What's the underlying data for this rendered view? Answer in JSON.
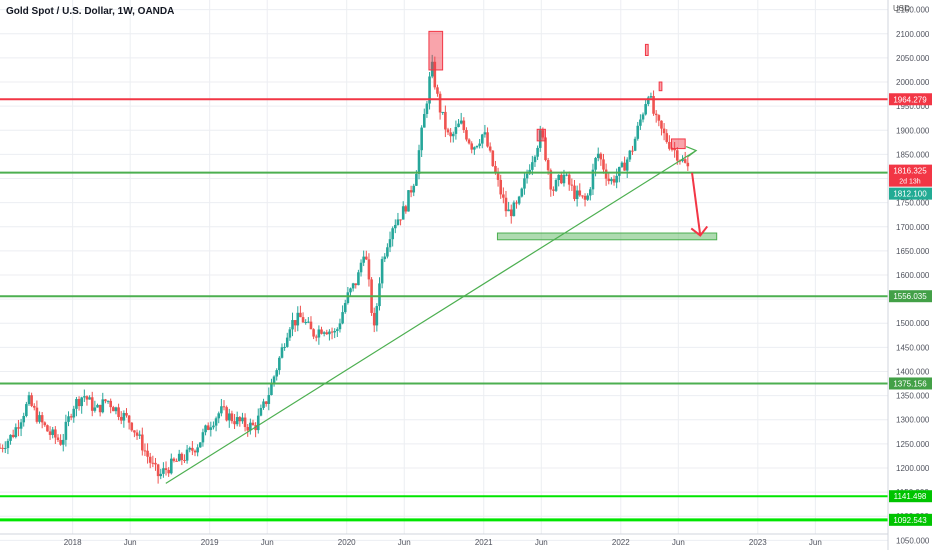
{
  "chart_data": {
    "type": "candlestick",
    "title": "Gold Spot / U.S. Dollar, 1W, OANDA",
    "currency": "USD",
    "ylim": [
      1030,
      2170
    ],
    "y_ticks": [
      2150,
      2100,
      2050,
      2000,
      1950,
      1900,
      1850,
      1800,
      1750,
      1700,
      1650,
      1600,
      1550,
      1500,
      1450,
      1400,
      1350,
      1300,
      1250,
      1200,
      1150,
      1100,
      1050
    ],
    "x_ticks": [
      {
        "label": "2018",
        "t": 2018.0
      },
      {
        "label": "Jun",
        "t": 2018.42
      },
      {
        "label": "2019",
        "t": 2019.0
      },
      {
        "label": "Jun",
        "t": 2019.42
      },
      {
        "label": "2020",
        "t": 2020.0
      },
      {
        "label": "Jun",
        "t": 2020.42
      },
      {
        "label": "2021",
        "t": 2021.0
      },
      {
        "label": "Jun",
        "t": 2021.42
      },
      {
        "label": "2022",
        "t": 2022.0
      },
      {
        "label": "Jun",
        "t": 2022.42
      },
      {
        "label": "2023",
        "t": 2023.0
      },
      {
        "label": "Jun",
        "t": 2023.42
      }
    ],
    "xlim": [
      2017.47,
      2023.95
    ],
    "price_path": [
      [
        2017.47,
        1242
      ],
      [
        2017.56,
        1268
      ],
      [
        2017.68,
        1338
      ],
      [
        2017.75,
        1302
      ],
      [
        2017.83,
        1272
      ],
      [
        2017.92,
        1254
      ],
      [
        2018.0,
        1328
      ],
      [
        2018.08,
        1352
      ],
      [
        2018.17,
        1318
      ],
      [
        2018.25,
        1342
      ],
      [
        2018.33,
        1318
      ],
      [
        2018.42,
        1296
      ],
      [
        2018.5,
        1252
      ],
      [
        2018.58,
        1205
      ],
      [
        2018.63,
        1182
      ],
      [
        2018.67,
        1195
      ],
      [
        2018.75,
        1212
      ],
      [
        2018.83,
        1225
      ],
      [
        2018.92,
        1252
      ],
      [
        2019.0,
        1292
      ],
      [
        2019.08,
        1318
      ],
      [
        2019.17,
        1302
      ],
      [
        2019.25,
        1290
      ],
      [
        2019.33,
        1285
      ],
      [
        2019.42,
        1345
      ],
      [
        2019.5,
        1418
      ],
      [
        2019.58,
        1498
      ],
      [
        2019.67,
        1512
      ],
      [
        2019.75,
        1478
      ],
      [
        2019.83,
        1492
      ],
      [
        2019.92,
        1478
      ],
      [
        2020.0,
        1552
      ],
      [
        2020.08,
        1592
      ],
      [
        2020.13,
        1660
      ],
      [
        2020.2,
        1482
      ],
      [
        2020.25,
        1622
      ],
      [
        2020.33,
        1702
      ],
      [
        2020.42,
        1735
      ],
      [
        2020.5,
        1805
      ],
      [
        2020.58,
        1955
      ],
      [
        2020.62,
        2035
      ],
      [
        2020.67,
        1955
      ],
      [
        2020.75,
        1878
      ],
      [
        2020.83,
        1915
      ],
      [
        2020.92,
        1865
      ],
      [
        2021.0,
        1895
      ],
      [
        2021.08,
        1812
      ],
      [
        2021.17,
        1728
      ],
      [
        2021.25,
        1742
      ],
      [
        2021.33,
        1825
      ],
      [
        2021.42,
        1895
      ],
      [
        2021.5,
        1775
      ],
      [
        2021.58,
        1808
      ],
      [
        2021.67,
        1765
      ],
      [
        2021.75,
        1752
      ],
      [
        2021.83,
        1855
      ],
      [
        2021.92,
        1792
      ],
      [
        2022.0,
        1815
      ],
      [
        2022.08,
        1858
      ],
      [
        2022.17,
        1948
      ],
      [
        2022.2,
        1982
      ],
      [
        2022.25,
        1922
      ],
      [
        2022.33,
        1882
      ],
      [
        2022.42,
        1848
      ],
      [
        2022.46,
        1832
      ],
      [
        2022.5,
        1818
      ]
    ],
    "drawings": {
      "resistance_level": {
        "label": "1964.279",
        "value": 1964.279,
        "color": "#f23645"
      },
      "current_price": {
        "label": "1816.325",
        "value": 1816.325,
        "color": "#f23645",
        "sub": "2d 13h"
      },
      "support_level": {
        "label": "1812.100",
        "value": 1812.1,
        "color": "#22ab94"
      },
      "levels": [
        {
          "label": "1556.035",
          "value": 1556.035,
          "color": "#4caf50"
        },
        {
          "label": "1375.156",
          "value": 1375.156,
          "color": "#4caf50"
        },
        {
          "label": "1141.498",
          "value": 1141.498,
          "color": "#00e600"
        },
        {
          "label": "1092.543",
          "value": 1092.543,
          "color": "#00e600"
        }
      ],
      "trendline": {
        "from": [
          2018.68,
          1168
        ],
        "to": [
          2022.55,
          1858
        ],
        "color": "#4caf50"
      },
      "target_zone": {
        "t0": 2021.1,
        "t1": 2022.7,
        "p0": 1673,
        "p1": 1687,
        "color": "#4caf50"
      },
      "projection_arrow": {
        "from": [
          2022.52,
          1812
        ],
        "to": [
          2022.58,
          1682
        ],
        "color": "#f23645"
      },
      "highlight_boxes": [
        {
          "t0": 2020.6,
          "t1": 2020.7,
          "p0": 2025,
          "p1": 2105
        },
        {
          "t0": 2021.39,
          "t1": 2021.45,
          "p0": 1878,
          "p1": 1902
        },
        {
          "t0": 2022.18,
          "t1": 2022.2,
          "p0": 2055,
          "p1": 2078
        },
        {
          "t0": 2022.28,
          "t1": 2022.3,
          "p0": 1982,
          "p1": 2000
        },
        {
          "t0": 2022.37,
          "t1": 2022.47,
          "p0": 1862,
          "p1": 1882
        }
      ]
    }
  }
}
